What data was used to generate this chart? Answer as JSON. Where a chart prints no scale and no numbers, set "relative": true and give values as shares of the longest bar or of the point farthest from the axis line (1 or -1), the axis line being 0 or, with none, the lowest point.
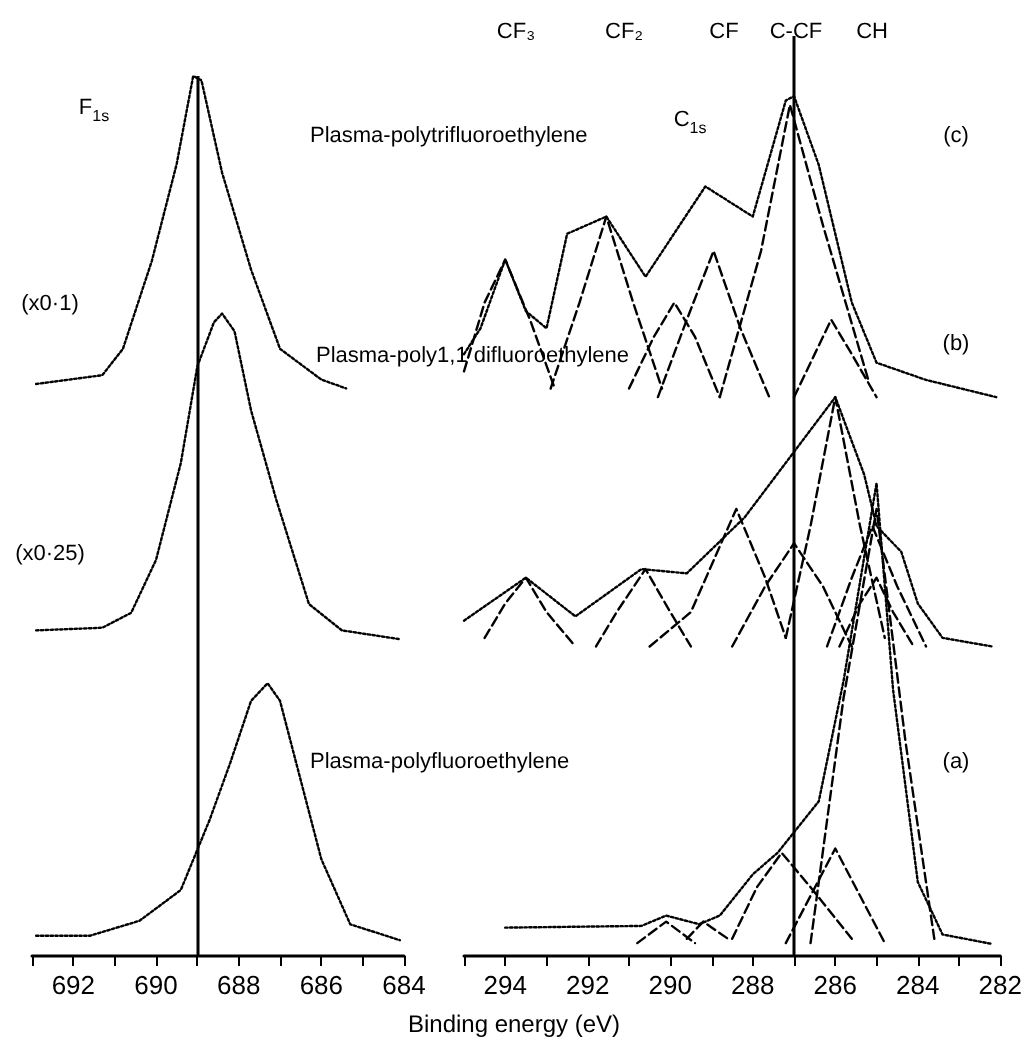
{
  "chart_data": [
    {
      "type": "line",
      "relative": true,
      "xlim": [
        693,
        684
      ],
      "xticks": [
        {
          "value": 693,
          "label": null
        },
        692,
        {
          "value": 691,
          "label": null
        },
        690,
        {
          "value": 689,
          "label": null
        },
        688,
        {
          "value": 687,
          "label": null
        },
        686,
        {
          "value": 685,
          "label": null
        },
        684
      ],
      "grid": false,
      "marker": "none",
      "line_style": "dotted",
      "ref_lines": [
        {
          "axis": "x",
          "value": 689,
          "color": "#000000",
          "line_style": "solid"
        }
      ],
      "annotations": [
        "F$_{1s}$",
        "(x0·1)",
        "(x0·25)",
        "Plasma-polytrifluoroethylene",
        "Plasma-poly1,1 difluoroethylene",
        "Plasma-polyfluoroethylene"
      ],
      "series": [
        {
          "color": "#000000",
          "x": [
            692.9,
            691.3,
            690.8,
            690.1,
            689.5,
            689.1,
            688.9,
            688.4,
            687.7,
            687.0,
            686.0,
            685.4
          ],
          "values": [
            0.65,
            0.66,
            0.69,
            0.79,
            0.9,
            1.0,
            0.995,
            0.89,
            0.78,
            0.69,
            0.655,
            0.645
          ]
        },
        {
          "color": "#000000",
          "x": [
            692.9,
            691.3,
            690.6,
            690.0,
            689.4,
            689.0,
            688.6,
            688.4,
            688.1,
            687.7,
            687.1,
            686.3,
            685.5,
            684.1
          ],
          "values": [
            0.37,
            0.373,
            0.39,
            0.45,
            0.56,
            0.67,
            0.72,
            0.73,
            0.71,
            0.62,
            0.52,
            0.4,
            0.37,
            0.36
          ]
        },
        {
          "color": "#000000",
          "x": [
            692.9,
            691.6,
            690.4,
            689.4,
            688.7,
            688.2,
            687.7,
            687.3,
            687.0,
            686.5,
            686.0,
            685.3,
            684.1
          ],
          "values": [
            0.023,
            0.023,
            0.04,
            0.075,
            0.155,
            0.22,
            0.29,
            0.31,
            0.29,
            0.2,
            0.11,
            0.036,
            0.018
          ]
        }
      ]
    },
    {
      "type": "line",
      "relative": true,
      "xlim": [
        295,
        282
      ],
      "xticks": [
        {
          "value": 295,
          "label": null
        },
        294,
        {
          "value": 293,
          "label": null
        },
        292,
        {
          "value": 291,
          "label": null
        },
        290,
        {
          "value": 289,
          "label": null
        },
        288,
        {
          "value": 287,
          "label": null
        },
        286,
        {
          "value": 285,
          "label": null
        },
        284,
        {
          "value": 283,
          "label": null
        },
        282
      ],
      "grid": false,
      "marker": "none",
      "line_style": "dotted",
      "xlabel": "Binding energy (eV)",
      "ref_lines": [
        {
          "axis": "x",
          "value": 287,
          "color": "#000000",
          "line_style": "solid"
        }
      ],
      "annotations": [
        "C$_{1s}$",
        "CF₃",
        "CF₂",
        "CF",
        "C-CF",
        "CH",
        "(c)",
        "(b)",
        "(a)"
      ],
      "series": [
        {
          "color": "#000000",
          "x": [
            295.0,
            294.6,
            294.0,
            293.5,
            293.0,
            292.5,
            291.55,
            290.6,
            289.15,
            288.0,
            287.2,
            287.0,
            286.4,
            285.6,
            285.0,
            283.8,
            282.1
          ],
          "values": [
            0.7,
            0.73,
            0.81,
            0.75,
            0.73,
            0.84,
            0.86,
            0.79,
            0.895,
            0.86,
            0.995,
            1.0,
            0.92,
            0.76,
            0.69,
            0.67,
            0.65
          ]
        },
        {
          "color": "#000000",
          "line_style": "dashed",
          "x": [
            295.0,
            294.5,
            294.0,
            293.4,
            292.8
          ],
          "values": [
            0.68,
            0.76,
            0.81,
            0.74,
            0.66
          ]
        },
        {
          "color": "#000000",
          "line_style": "dashed",
          "x": [
            292.9,
            292.2,
            291.55,
            290.9,
            290.2
          ],
          "values": [
            0.66,
            0.76,
            0.86,
            0.76,
            0.66
          ]
        },
        {
          "color": "#000000",
          "line_style": "dashed",
          "x": [
            291.0,
            290.4,
            289.9,
            289.4,
            288.8
          ],
          "values": [
            0.66,
            0.72,
            0.76,
            0.72,
            0.65
          ]
        },
        {
          "color": "#000000",
          "line_style": "dashed",
          "x": [
            290.3,
            289.6,
            288.95,
            288.3,
            287.6
          ],
          "values": [
            0.65,
            0.74,
            0.82,
            0.73,
            0.65
          ]
        },
        {
          "color": "#000000",
          "line_style": "dashed",
          "x": [
            288.8,
            287.8,
            287.1,
            286.3,
            285.2
          ],
          "values": [
            0.65,
            0.82,
            0.99,
            0.85,
            0.67
          ]
        },
        {
          "color": "#000000",
          "line_style": "dashed",
          "x": [
            287.0,
            286.5,
            286.1,
            285.6,
            285.0
          ],
          "values": [
            0.65,
            0.7,
            0.74,
            0.7,
            0.65
          ]
        },
        {
          "color": "#000000",
          "x": [
            295.0,
            293.5,
            292.3,
            290.7,
            289.6,
            288.2,
            287.1,
            286.0,
            285.3,
            285.0,
            284.4,
            284.0,
            283.4,
            282.2
          ],
          "values": [
            0.39,
            0.44,
            0.395,
            0.45,
            0.445,
            0.51,
            0.58,
            0.65,
            0.56,
            0.5,
            0.47,
            0.41,
            0.37,
            0.36
          ]
        },
        {
          "color": "#000000",
          "line_style": "dashed",
          "x": [
            294.5,
            294.0,
            293.5,
            293.0,
            292.3
          ],
          "values": [
            0.37,
            0.41,
            0.44,
            0.4,
            0.36
          ]
        },
        {
          "color": "#000000",
          "line_style": "dashed",
          "x": [
            291.8,
            291.3,
            290.6,
            290.0,
            289.5
          ],
          "values": [
            0.36,
            0.4,
            0.45,
            0.4,
            0.36
          ]
        },
        {
          "color": "#000000",
          "line_style": "dashed",
          "x": [
            290.5,
            289.5,
            288.4,
            287.7,
            287.2
          ],
          "values": [
            0.36,
            0.4,
            0.52,
            0.44,
            0.37
          ]
        },
        {
          "color": "#000000",
          "line_style": "dashed",
          "x": [
            288.5,
            287.7,
            287.0,
            286.3,
            285.6
          ],
          "values": [
            0.36,
            0.43,
            0.48,
            0.43,
            0.36
          ]
        },
        {
          "color": "#000000",
          "line_style": "dashed",
          "x": [
            287.2,
            286.6,
            286.0,
            285.4,
            284.8
          ],
          "values": [
            0.37,
            0.5,
            0.65,
            0.5,
            0.37
          ]
        },
        {
          "color": "#000000",
          "line_style": "dashed",
          "x": [
            286.2,
            285.6,
            285.1,
            284.5,
            283.8
          ],
          "values": [
            0.36,
            0.44,
            0.5,
            0.43,
            0.36
          ]
        },
        {
          "color": "#000000",
          "line_style": "dashed",
          "x": [
            285.9,
            285.4,
            285.0,
            284.6,
            284.1
          ],
          "values": [
            0.36,
            0.41,
            0.44,
            0.4,
            0.36
          ]
        },
        {
          "color": "#000000",
          "x": [
            294.0,
            290.7,
            290.1,
            289.3,
            288.8,
            288.0,
            287.4,
            286.4,
            285.8,
            285.0,
            284.6,
            284.0,
            283.4,
            282.2
          ],
          "values": [
            0.033,
            0.035,
            0.047,
            0.037,
            0.047,
            0.095,
            0.12,
            0.18,
            0.32,
            0.55,
            0.31,
            0.086,
            0.025,
            0.014
          ]
        },
        {
          "color": "#000000",
          "line_style": "dashed",
          "x": [
            290.8,
            290.1,
            289.4
          ],
          "values": [
            0.015,
            0.04,
            0.015
          ]
        },
        {
          "color": "#000000",
          "line_style": "dashed",
          "x": [
            289.6,
            289.2,
            288.6
          ],
          "values": [
            0.02,
            0.04,
            0.02
          ]
        },
        {
          "color": "#000000",
          "line_style": "dashed",
          "x": [
            288.5,
            287.9,
            287.3,
            286.6,
            285.6
          ],
          "values": [
            0.02,
            0.08,
            0.12,
            0.08,
            0.02
          ]
        },
        {
          "color": "#000000",
          "line_style": "dashed",
          "x": [
            287.2,
            286.6,
            286.0,
            285.4,
            284.8
          ],
          "values": [
            0.015,
            0.07,
            0.125,
            0.07,
            0.015
          ]
        },
        {
          "color": "#000000",
          "line_style": "dashed",
          "x": [
            286.6,
            285.8,
            285.0,
            284.3,
            283.6
          ],
          "values": [
            0.015,
            0.3,
            0.52,
            0.25,
            0.02
          ]
        }
      ]
    }
  ]
}
